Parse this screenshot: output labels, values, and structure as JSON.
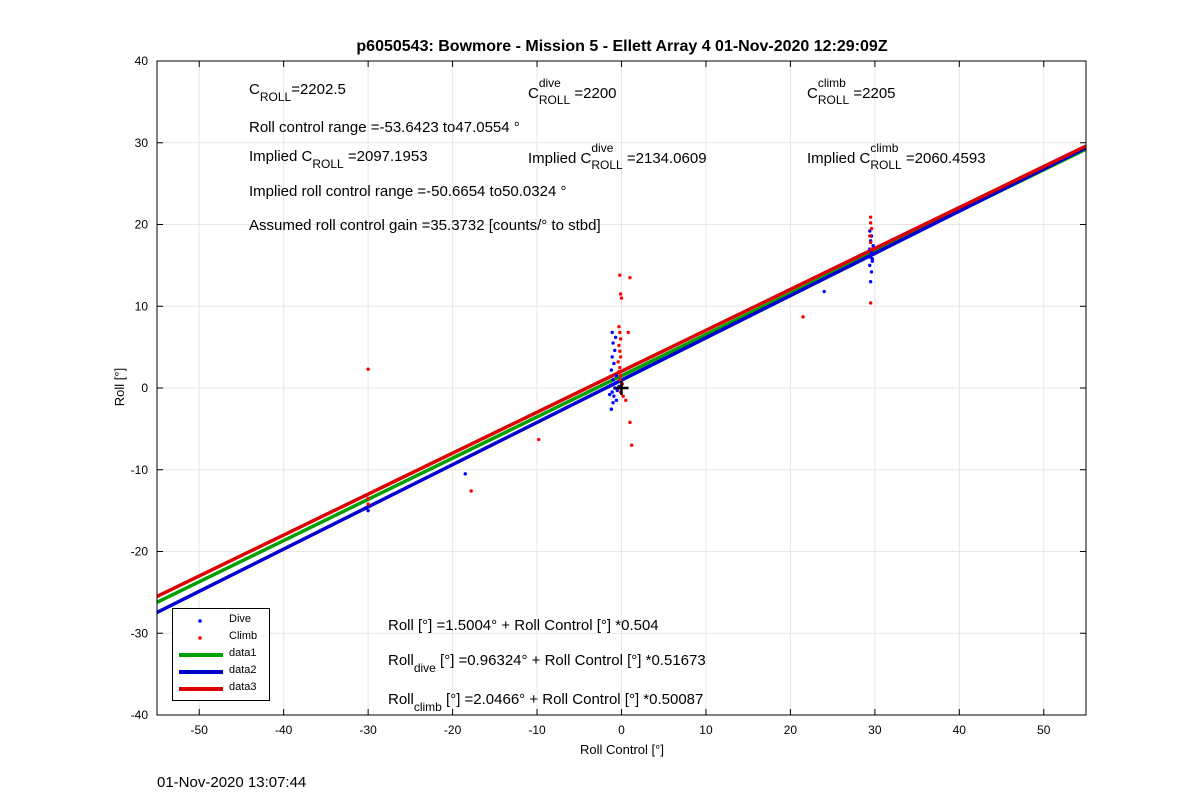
{
  "chart_data": {
    "type": "scatter",
    "title": "p6050543: Bowmore - Mission 5 - Ellett Array 4 01-Nov-2020 12:29:09Z",
    "xlabel": "Roll Control [°]",
    "ylabel": "Roll [°]",
    "xlim": [
      -55,
      55
    ],
    "ylim": [
      -40,
      40
    ],
    "xticks": [
      -50,
      -40,
      -30,
      -20,
      -10,
      0,
      10,
      20,
      30,
      40,
      50
    ],
    "yticks": [
      -40,
      -30,
      -20,
      -10,
      0,
      10,
      20,
      30,
      40
    ],
    "grid": true,
    "legend_position": "bottom-left",
    "series": [
      {
        "name": "Dive",
        "kind": "scatter",
        "color": "#0000ff",
        "points": [
          [
            -30,
            -15.0
          ],
          [
            -18.5,
            -10.5
          ],
          [
            -1.2,
            -2.6
          ],
          [
            -1.0,
            -1.8
          ],
          [
            -0.9,
            -1.0
          ],
          [
            -1.1,
            -0.5
          ],
          [
            -0.8,
            0.0
          ],
          [
            -1.3,
            0.3
          ],
          [
            -0.7,
            0.6
          ],
          [
            -1.0,
            1.0
          ],
          [
            -0.6,
            1.5
          ],
          [
            -1.2,
            2.2
          ],
          [
            -0.9,
            3.0
          ],
          [
            -1.1,
            3.8
          ],
          [
            -0.8,
            4.6
          ],
          [
            -1.0,
            5.5
          ],
          [
            -0.7,
            6.2
          ],
          [
            -1.1,
            6.8
          ],
          [
            -0.5,
            -0.3
          ],
          [
            -0.3,
            0.2
          ],
          [
            -1.4,
            -0.8
          ],
          [
            -0.6,
            -1.5
          ],
          [
            24,
            11.8
          ],
          [
            29.5,
            13.0
          ],
          [
            29.6,
            14.2
          ],
          [
            29.4,
            15.0
          ],
          [
            29.7,
            15.5
          ],
          [
            29.5,
            16.0
          ],
          [
            29.6,
            16.5
          ],
          [
            29.4,
            17.0
          ],
          [
            29.8,
            17.4
          ],
          [
            29.5,
            18.0
          ],
          [
            29.6,
            18.6
          ],
          [
            29.4,
            19.2
          ],
          [
            29.7,
            15.8
          ]
        ]
      },
      {
        "name": "Climb",
        "kind": "scatter",
        "color": "#ff0000",
        "points": [
          [
            -30,
            2.3
          ],
          [
            -30,
            -13.5
          ],
          [
            -30,
            -14.2
          ],
          [
            -17.8,
            -12.6
          ],
          [
            -9.8,
            -6.3
          ],
          [
            -0.2,
            13.8
          ],
          [
            -0.1,
            11.5
          ],
          [
            0.0,
            11.0
          ],
          [
            1.0,
            13.5
          ],
          [
            0.8,
            6.8
          ],
          [
            -0.3,
            7.5
          ],
          [
            -0.2,
            6.8
          ],
          [
            -0.1,
            6.0
          ],
          [
            -0.3,
            5.2
          ],
          [
            -0.2,
            4.5
          ],
          [
            -0.1,
            3.8
          ],
          [
            -0.4,
            3.2
          ],
          [
            -0.2,
            2.5
          ],
          [
            -0.3,
            2.0
          ],
          [
            -0.1,
            1.5
          ],
          [
            -0.2,
            1.0
          ],
          [
            0.1,
            0.5
          ],
          [
            -0.3,
            0.0
          ],
          [
            -0.1,
            -0.5
          ],
          [
            0.2,
            -1.0
          ],
          [
            0.5,
            -1.5
          ],
          [
            1.0,
            -4.2
          ],
          [
            1.2,
            -7.0
          ],
          [
            21.5,
            8.7
          ],
          [
            29.5,
            10.4
          ],
          [
            29.6,
            17.0
          ],
          [
            29.5,
            17.8
          ],
          [
            29.4,
            18.6
          ],
          [
            29.6,
            19.5
          ],
          [
            29.5,
            20.2
          ],
          [
            29.5,
            20.9
          ]
        ]
      },
      {
        "name": "data1",
        "kind": "line",
        "color": "#00a000",
        "intercept": 1.5004,
        "slope": 0.504
      },
      {
        "name": "data2",
        "kind": "line",
        "color": "#0000cc",
        "intercept": 0.96324,
        "slope": 0.51673
      },
      {
        "name": "data3",
        "kind": "line",
        "color": "#dd0000",
        "intercept": 2.0466,
        "slope": 0.50087
      }
    ],
    "marker_cross": [
      0,
      0
    ],
    "annotations": {
      "croll": {
        "sym": "C",
        "sub": "ROLL",
        "val": "=2202.5"
      },
      "croll_dive": {
        "sym": "C",
        "sup": "dive",
        "sub": "ROLL",
        "val": " =2200"
      },
      "croll_climb": {
        "sym": "C",
        "sup": "climb",
        "sub": "ROLL",
        "val": " =2205"
      },
      "roll_range": "Roll control range =-53.6423 to47.0554 °",
      "implied_croll": {
        "pre": "Implied C",
        "sub": "ROLL",
        "val": " =2097.1953"
      },
      "implied_croll_dive": {
        "pre": "Implied C",
        "sup": "dive",
        "sub": "ROLL",
        "val": " =2134.0609"
      },
      "implied_croll_climb": {
        "pre": "Implied C",
        "sup": "climb",
        "sub": "ROLL",
        "val": " =2060.4593"
      },
      "implied_range": "Implied roll control range =-50.6654 to50.0324 °",
      "gain": "Assumed roll control gain =35.3732 [counts/° to stbd]",
      "eq_all": "Roll [°] =1.5004° + Roll Control [°] *0.504",
      "eq_dive": {
        "pre": "Roll",
        "sub": "dive",
        "post": " [°] =0.96324° + Roll Control [°] *0.51673"
      },
      "eq_climb": {
        "pre": "Roll",
        "sub": "climb",
        "post": " [°] =2.0466° + Roll Control [°] *0.50087"
      }
    }
  },
  "footer_timestamp": "01-Nov-2020 13:07:44"
}
